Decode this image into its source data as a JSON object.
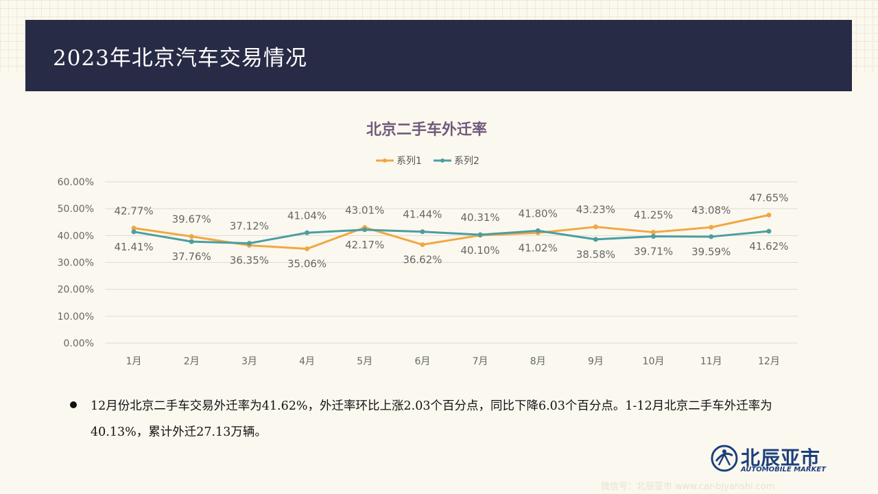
{
  "header": {
    "title": "2023年北京汽车交易情况"
  },
  "chart_data": {
    "type": "line",
    "title": "北京二手车外迁率",
    "categories": [
      "1月",
      "2月",
      "3月",
      "4月",
      "5月",
      "6月",
      "7月",
      "8月",
      "9月",
      "10月",
      "11月",
      "12月"
    ],
    "series": [
      {
        "name": "系列1",
        "color": "#f0a742",
        "values": [
          42.77,
          39.67,
          36.35,
          35.06,
          43.01,
          36.62,
          40.1,
          41.02,
          43.23,
          41.25,
          43.08,
          47.65
        ],
        "labels": [
          "42.77%",
          "39.67%",
          "36.35%",
          "35.06%",
          "43.01%",
          "36.62%",
          "40.10%",
          "41.02%",
          "43.23%",
          "41.25%",
          "43.08%",
          "47.65%"
        ]
      },
      {
        "name": "系列2",
        "color": "#4a9ea1",
        "values": [
          41.41,
          37.76,
          37.12,
          41.04,
          42.17,
          41.44,
          40.31,
          41.8,
          38.58,
          39.71,
          39.59,
          41.62
        ],
        "labels": [
          "41.41%",
          "37.76%",
          "37.12%",
          "41.04%",
          "42.17%",
          "41.44%",
          "40.31%",
          "41.80%",
          "38.58%",
          "39.71%",
          "39.59%",
          "41.62%"
        ]
      }
    ],
    "ylim": [
      0,
      60
    ],
    "yticks": [
      "0.00%",
      "10.00%",
      "20.00%",
      "30.00%",
      "40.00%",
      "50.00%",
      "60.00%"
    ],
    "grid": true,
    "legend": "top"
  },
  "summary": {
    "text": "12月份北京二手车交易外迁率为41.62%，外迁率环比上涨2.03个百分点，同比下降6.03个百分点。1-12月北京二手车外迁率为40.13%，累计外迁27.13万辆。"
  },
  "logo": {
    "name_cn": "北辰亚市",
    "name_en": "AUTOMOBILE MARKET"
  },
  "watermark": {
    "text": "微信号：北辰亚市 www.car-bjyanshi.com"
  },
  "colors": {
    "header_bg": "#282b46",
    "title_color": "#705a7a",
    "brand": "#1c3f7c"
  }
}
